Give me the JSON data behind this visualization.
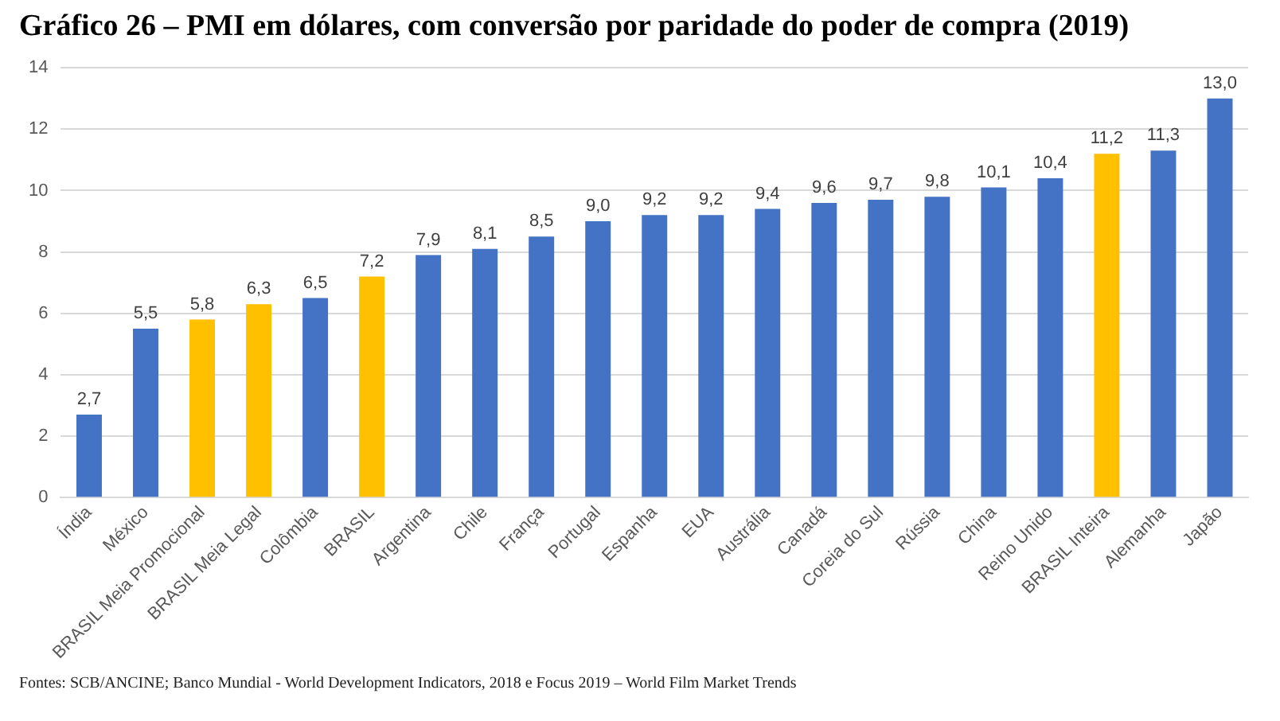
{
  "chart_data": {
    "type": "bar",
    "title": "Gráfico 26 – PMI em dólares, com conversão por paridade do poder de compra (2019)",
    "categories": [
      "Índia",
      "México",
      "BRASIL Meia Promocional",
      "BRASIL Meia Legal",
      "Colômbia",
      "BRASIL",
      "Argentina",
      "Chile",
      "França",
      "Portugal",
      "Espanha",
      "EUA",
      "Austrália",
      "Canadá",
      "Coreia do Sul",
      "Rússia",
      "China",
      "Reino Unido",
      "BRASIL Inteira",
      "Alemanha",
      "Japão"
    ],
    "values": [
      2.7,
      5.5,
      5.8,
      6.3,
      6.5,
      7.2,
      7.9,
      8.1,
      8.5,
      9.0,
      9.2,
      9.2,
      9.4,
      9.6,
      9.7,
      9.8,
      10.1,
      10.4,
      11.2,
      11.3,
      13.0
    ],
    "colors": [
      "#4472c4",
      "#4472c4",
      "#ffc000",
      "#ffc000",
      "#4472c4",
      "#ffc000",
      "#4472c4",
      "#4472c4",
      "#4472c4",
      "#4472c4",
      "#4472c4",
      "#4472c4",
      "#4472c4",
      "#4472c4",
      "#4472c4",
      "#4472c4",
      "#4472c4",
      "#4472c4",
      "#ffc000",
      "#4472c4",
      "#4472c4"
    ],
    "value_labels": [
      "2,7",
      "5,5",
      "5,8",
      "6,3",
      "6,5",
      "7,2",
      "7,9",
      "8,1",
      "8,5",
      "9,0",
      "9,2",
      "9,2",
      "9,4",
      "9,6",
      "9,7",
      "9,8",
      "10,1",
      "10,4",
      "11,2",
      "11,3",
      "13,0"
    ],
    "ylim": [
      0,
      14
    ],
    "yticks": [
      0,
      2,
      4,
      6,
      8,
      10,
      12,
      14
    ],
    "grid": "y",
    "annotations": [
      "Fontes: SCB/ANCINE; Banco Mundial - World Development Indicators, 2018 e Focus 2019 – World Film Market Trends"
    ]
  }
}
